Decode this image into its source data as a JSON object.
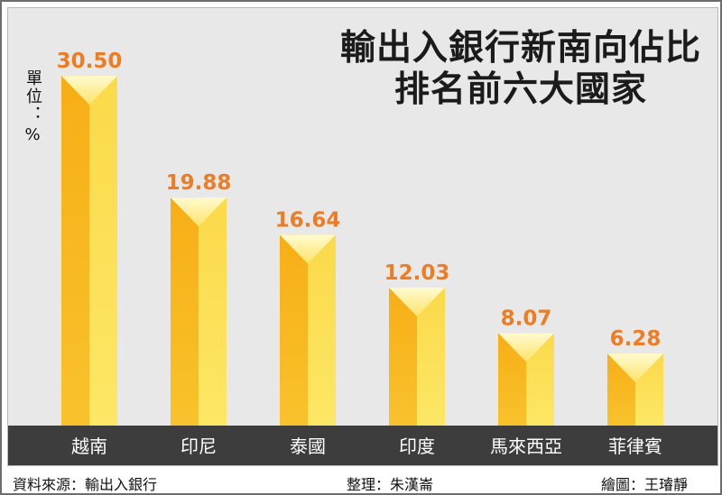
{
  "chart_data": {
    "type": "bar",
    "title": "輸出入銀行新南向佔比",
    "subtitle": "排名前六大國家",
    "unit_label": "單位：",
    "unit_symbol": "%",
    "categories": [
      "越南",
      "印尼",
      "泰國",
      "印度",
      "馬來西亞",
      "菲律賓"
    ],
    "values": [
      30.5,
      19.88,
      16.64,
      12.03,
      8.07,
      6.28
    ],
    "data_labels": [
      "30.50",
      "19.88",
      "16.64",
      "12.03",
      "8.07",
      "6.28"
    ],
    "ylim": [
      0,
      32
    ],
    "grid": false,
    "legend": "none",
    "colors": {
      "bar_left": "#f8b51c",
      "bar_right": "#fcdf55",
      "bar_cap": "#fff2a0",
      "value_label": "#ec7d25",
      "axis_band": "#3d3d3d",
      "category_text": "#ffffff",
      "panel": "#e8e8e8"
    }
  },
  "footer": {
    "source": "資料來源：輸出入銀行",
    "editor": "整理：朱漢崙",
    "artist": "繪圖：王璿靜"
  }
}
